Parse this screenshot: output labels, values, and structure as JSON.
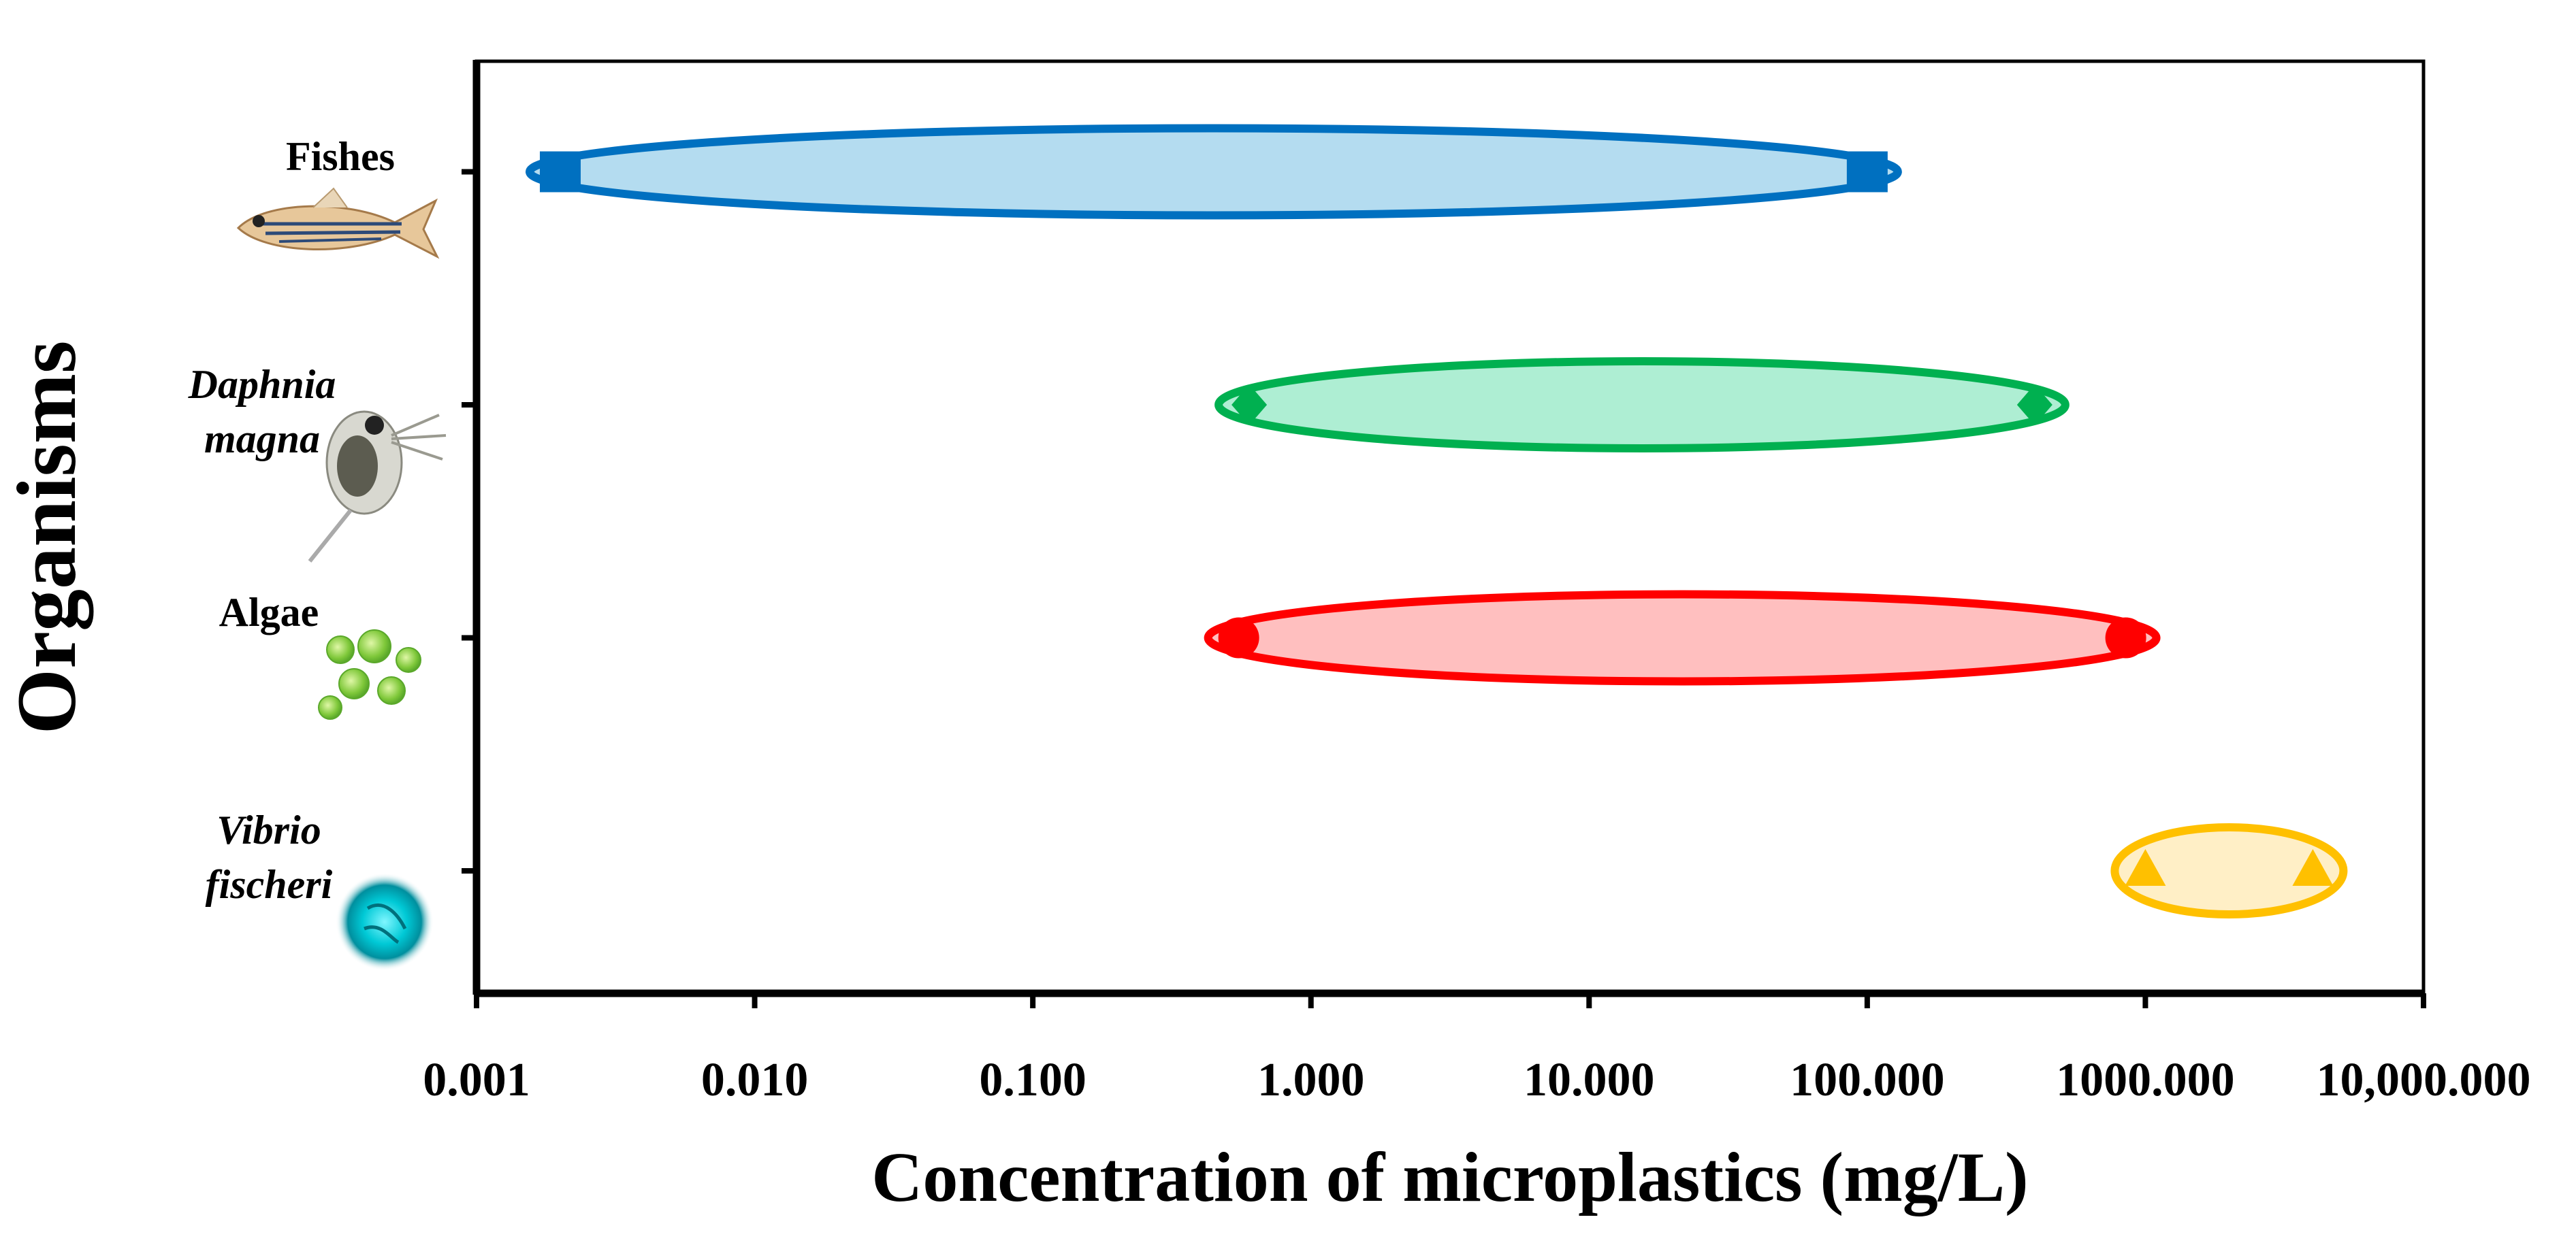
{
  "chart_data": {
    "type": "range",
    "title": "",
    "xlabel": "Concentration of microplastics (mg/L)",
    "ylabel": "Organisms",
    "xscale": "log",
    "xlim": [
      0.001,
      10000
    ],
    "x_ticks": [
      {
        "value": 0.001,
        "label": "0.001"
      },
      {
        "value": 0.01,
        "label": "0.010"
      },
      {
        "value": 0.1,
        "label": "0.100"
      },
      {
        "value": 1,
        "label": "1.000"
      },
      {
        "value": 10,
        "label": "10.000"
      },
      {
        "value": 100,
        "label": "100.000"
      },
      {
        "value": 1000,
        "label": "1000.000"
      },
      {
        "value": 10000,
        "label": "10,000.000"
      }
    ],
    "grid": false,
    "series": [
      {
        "name": "Fishes",
        "label_lines": [
          "Fishes"
        ],
        "italic": false,
        "icon": "zebrafish-icon",
        "min": 0.002,
        "max": 100,
        "color": "#0070c0",
        "fill": "#b4dcf0",
        "marker": "square"
      },
      {
        "name": "Daphnia magna",
        "label_lines": [
          "Daphnia",
          "magna"
        ],
        "italic": true,
        "icon": "daphnia-icon",
        "min": 0.6,
        "max": 400,
        "color": "#00b050",
        "fill": "#aeeed3",
        "marker": "diamond"
      },
      {
        "name": "Algae",
        "label_lines": [
          "Algae"
        ],
        "italic": false,
        "icon": "algae-icon",
        "min": 0.55,
        "max": 850,
        "color": "#ff0000",
        "fill": "#ffbfbf",
        "marker": "circle"
      },
      {
        "name": "Vibrio fischeri",
        "label_lines": [
          "Vibrio",
          "fischeri"
        ],
        "italic": true,
        "icon": "bacterium-icon",
        "min": 1000,
        "max": 4000,
        "color": "#ffc000",
        "fill": "#ffefc6",
        "marker": "triangle"
      }
    ]
  }
}
